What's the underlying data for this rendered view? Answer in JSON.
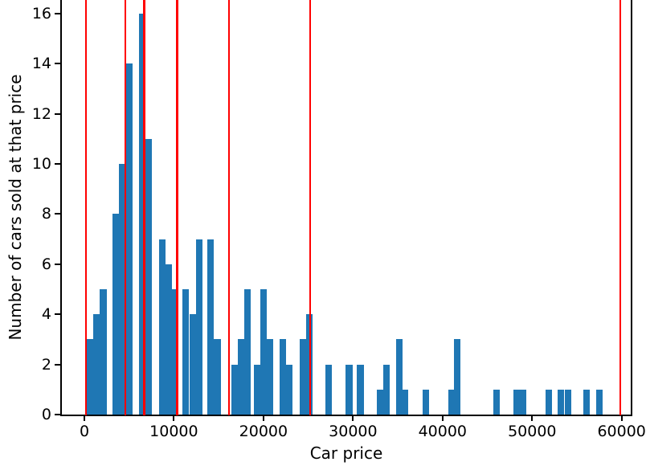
{
  "chart_data": {
    "type": "bar",
    "subtype": "histogram",
    "title": "",
    "xlabel": "Car price",
    "ylabel": "Number of cars sold at that price",
    "x_ticks": [
      0,
      10000,
      20000,
      30000,
      40000,
      50000,
      60000
    ],
    "x_tick_labels": [
      "0",
      "10000",
      "20000",
      "30000",
      "40000",
      "50000",
      "60000"
    ],
    "y_ticks": [
      0,
      2,
      4,
      6,
      8,
      10,
      12,
      14,
      16
    ],
    "y_tick_labels": [
      "0",
      "2",
      "4",
      "6",
      "8",
      "10",
      "12",
      "14",
      "16"
    ],
    "xlim": [
      -2600,
      61100
    ],
    "ylim_visible": [
      0,
      16.6
    ],
    "grid": false,
    "legend": false,
    "bin_width": 740,
    "bars": [
      {
        "price": 250,
        "count": 3
      },
      {
        "price": 990,
        "count": 4
      },
      {
        "price": 1730,
        "count": 5
      },
      {
        "price": 3130,
        "count": 8
      },
      {
        "price": 3870,
        "count": 10
      },
      {
        "price": 4600,
        "count": 14
      },
      {
        "price": 6090,
        "count": 16
      },
      {
        "price": 6830,
        "count": 11
      },
      {
        "price": 8310,
        "count": 7
      },
      {
        "price": 9050,
        "count": 6
      },
      {
        "price": 9800,
        "count": 5
      },
      {
        "price": 10900,
        "count": 5
      },
      {
        "price": 11730,
        "count": 4
      },
      {
        "price": 12480,
        "count": 7
      },
      {
        "price": 13730,
        "count": 7
      },
      {
        "price": 14480,
        "count": 3
      },
      {
        "price": 16410,
        "count": 2
      },
      {
        "price": 17100,
        "count": 3
      },
      {
        "price": 17850,
        "count": 5
      },
      {
        "price": 18960,
        "count": 2
      },
      {
        "price": 19640,
        "count": 5
      },
      {
        "price": 20360,
        "count": 3
      },
      {
        "price": 21760,
        "count": 3
      },
      {
        "price": 22480,
        "count": 2
      },
      {
        "price": 24030,
        "count": 3
      },
      {
        "price": 24780,
        "count": 4
      },
      {
        "price": 26870,
        "count": 2
      },
      {
        "price": 29190,
        "count": 2
      },
      {
        "price": 30450,
        "count": 2
      },
      {
        "price": 32690,
        "count": 1
      },
      {
        "price": 33340,
        "count": 2
      },
      {
        "price": 34770,
        "count": 3
      },
      {
        "price": 35460,
        "count": 1
      },
      {
        "price": 37760,
        "count": 1
      },
      {
        "price": 40660,
        "count": 1
      },
      {
        "price": 41290,
        "count": 3
      },
      {
        "price": 45670,
        "count": 1
      },
      {
        "price": 47900,
        "count": 1
      },
      {
        "price": 48580,
        "count": 1
      },
      {
        "price": 51490,
        "count": 1
      },
      {
        "price": 52830,
        "count": 1
      },
      {
        "price": 53620,
        "count": 1
      },
      {
        "price": 55720,
        "count": 1
      },
      {
        "price": 57160,
        "count": 1
      }
    ],
    "red_vlines": [
      160,
      4570,
      6670,
      10350,
      16160,
      25230,
      59860
    ],
    "colors": {
      "bar": "#1f77b4",
      "vline": "#ff0000",
      "axis": "#000000",
      "text": "#000000"
    }
  }
}
